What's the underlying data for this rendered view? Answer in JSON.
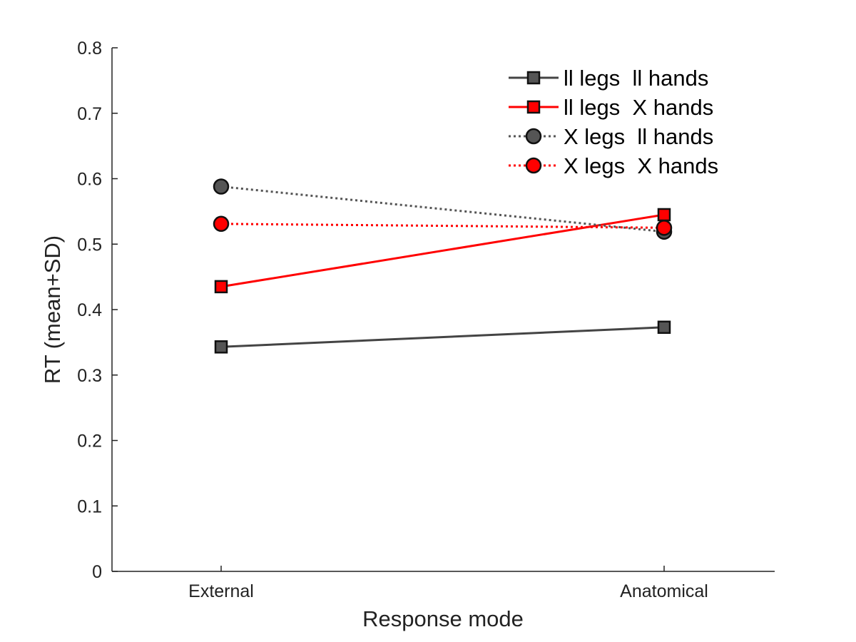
{
  "chart_data": {
    "type": "line",
    "xlabel": "Response mode",
    "ylabel": "RT (mean+SD)",
    "categories": [
      "External",
      "Anatomical"
    ],
    "ylim": [
      0,
      0.8
    ],
    "yticks": [
      "0",
      "0.1",
      "0.2",
      "0.3",
      "0.4",
      "0.5",
      "0.6",
      "0.7",
      "0.8"
    ],
    "grid": false,
    "legend_position": "top-right",
    "series": [
      {
        "name": "ll legs  ll hands",
        "values": [
          0.343,
          0.373
        ],
        "color": "#444444",
        "marker": "square",
        "line_style": "solid"
      },
      {
        "name": "ll legs  X hands",
        "values": [
          0.435,
          0.545
        ],
        "color": "#ff0000",
        "marker": "square",
        "line_style": "solid"
      },
      {
        "name": "X legs  ll hands",
        "values": [
          0.588,
          0.519
        ],
        "color": "#555555",
        "marker": "circle",
        "line_style": "dotted"
      },
      {
        "name": "X legs  X hands",
        "values": [
          0.531,
          0.525
        ],
        "color": "#ff0000",
        "marker": "circle",
        "line_style": "dotted"
      }
    ]
  }
}
